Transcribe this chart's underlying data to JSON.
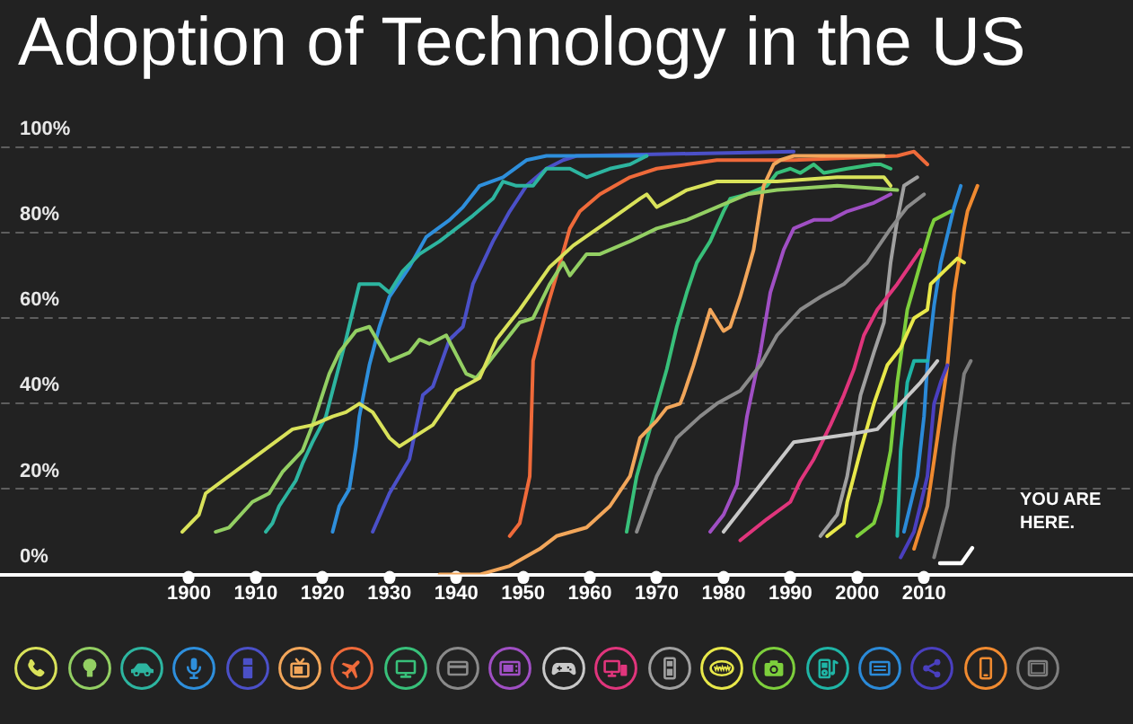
{
  "chart_data": {
    "type": "line",
    "title": "Adoption of Technology in the US",
    "xlim": [
      1872,
      2041
    ],
    "xticks": [
      1900,
      1910,
      1920,
      1930,
      1940,
      1950,
      1960,
      1970,
      1980,
      1990,
      2000,
      2010
    ],
    "ylim": [
      0,
      100
    ],
    "yticks": [
      {
        "value": 0,
        "label": "0%"
      },
      {
        "value": 20,
        "label": "20%"
      },
      {
        "value": 40,
        "label": "40%"
      },
      {
        "value": 60,
        "label": "60%"
      },
      {
        "value": 80,
        "label": "80%"
      },
      {
        "value": 100,
        "label": "100%"
      }
    ],
    "grid": "y",
    "annotations": [
      "YOU ARE HERE."
    ],
    "series": [
      {
        "color": "#d9e25a",
        "x": [
          1899,
          1901.5,
          1902.5,
          1915.5,
          1918.5,
          1921.5,
          1923.5,
          1925.5,
          1927.5,
          1930,
          1931.5,
          1936.5,
          1940,
          1943.5,
          1946,
          1949.5,
          1954,
          1957.5,
          1963,
          1967.5,
          1968.5,
          1970,
          1974.5,
          1979,
          1988,
          1997,
          2004,
          2005
        ],
        "values": [
          10,
          14,
          19,
          34,
          35,
          37,
          38,
          40,
          38,
          32,
          30,
          35,
          43,
          46,
          55,
          62,
          72,
          77,
          83,
          88,
          89,
          86,
          90,
          92,
          92,
          93,
          93,
          91
        ]
      },
      {
        "color": "#93cf63",
        "x": [
          1904,
          1906,
          1909.5,
          1912,
          1914,
          1917,
          1918.5,
          1921,
          1922.5,
          1925,
          1927,
          1930,
          1933,
          1934.5,
          1936,
          1938.5,
          1941.5,
          1943,
          1946,
          1949.5,
          1951.5,
          1954,
          1956,
          1957,
          1959.5,
          1961.5,
          1966,
          1970,
          1974.5,
          1979,
          1983.5,
          1988,
          1997,
          2006
        ],
        "values": [
          10,
          11,
          17,
          19,
          24,
          29,
          35,
          47,
          52,
          57,
          58,
          50,
          52,
          55,
          54,
          56,
          47,
          46,
          52,
          59,
          60,
          68,
          73,
          70,
          75,
          75,
          78,
          81,
          83,
          86,
          89,
          90,
          91,
          90
        ]
      },
      {
        "color": "#2db5a0",
        "x": [
          1911.5,
          1912.5,
          1913.5,
          1916,
          1917,
          1918.5,
          1920.5,
          1921.5,
          1923.5,
          1925.5,
          1928.5,
          1930,
          1932,
          1934.5,
          1937.5,
          1940,
          1942.5,
          1945.5,
          1947,
          1949,
          1951.5,
          1953.5,
          1957,
          1959.5,
          1963,
          1966,
          1968.5
        ],
        "values": [
          10,
          12,
          16,
          22,
          26,
          31,
          37,
          43,
          55,
          68,
          68,
          66,
          71,
          75,
          78,
          81,
          84,
          88,
          92,
          91,
          91,
          95,
          95,
          93,
          95,
          96,
          98
        ]
      },
      {
        "color": "#2e8fdc",
        "x": [
          1921.5,
          1922.5,
          1924,
          1925,
          1925.5,
          1927,
          1928.5,
          1930,
          1933,
          1935.5,
          1939,
          1941,
          1943.5,
          1947,
          1950.5,
          1953.5,
          1968.5
        ],
        "values": [
          10,
          16,
          20,
          30,
          37,
          49,
          58,
          65,
          72,
          79,
          83,
          86,
          91,
          93,
          97,
          98,
          98
        ]
      },
      {
        "color": "#4b50c8",
        "x": [
          1927.5,
          1930,
          1933,
          1935,
          1936.5,
          1939,
          1941,
          1942.5,
          1945.5,
          1948,
          1950.5,
          1953.5,
          1956,
          1958,
          1990.5
        ],
        "values": [
          10,
          19,
          27,
          42,
          44,
          55,
          58,
          68,
          78,
          85,
          91,
          95,
          97,
          98,
          99
        ]
      },
      {
        "color": "#f2a65a",
        "x": [
          1937.5,
          1943.5,
          1948,
          1952.5,
          1955,
          1959.5,
          1963,
          1966,
          1967.5,
          1970,
          1971.5,
          1973.5,
          1974,
          1975.5,
          1978,
          1980,
          1981,
          1982.5,
          1984.5,
          1986,
          1987.5,
          1988.5,
          1990.5,
          2004
        ],
        "values": [
          0,
          0,
          2,
          6,
          9,
          11,
          16,
          23,
          32,
          36,
          39,
          40,
          42,
          49,
          62,
          57,
          58,
          65,
          76,
          91,
          96,
          97,
          98,
          98
        ]
      },
      {
        "color": "#ef6a3a",
        "x": [
          1948,
          1949.5,
          1951,
          1951.5,
          1953.5,
          1955,
          1957,
          1958.5,
          1961.5,
          1966,
          1970,
          1974.5,
          1979,
          1990.5,
          2006,
          2008.5,
          2010.5
        ],
        "values": [
          9,
          12,
          23,
          50,
          62,
          70,
          81,
          85,
          89,
          93,
          95,
          96,
          97,
          97,
          98,
          99,
          96
        ]
      },
      {
        "color": "#38c07a",
        "x": [
          1965.5,
          1967,
          1969.5,
          1971.5,
          1973,
          1974.5,
          1976,
          1978,
          1980,
          1981,
          1983.5,
          1986.5,
          1988,
          1990,
          1991.5,
          1993.5,
          1995,
          1998.5,
          2002.5,
          2003.5,
          2005
        ],
        "values": [
          10,
          23,
          37,
          48,
          58,
          66,
          73,
          78,
          85,
          88,
          89,
          91,
          94,
          95,
          94,
          96,
          94,
          95,
          96,
          96,
          95
        ]
      },
      {
        "color": "#8a8a8a",
        "x": [
          1967,
          1970,
          1973,
          1976.5,
          1979,
          1982.5,
          1985.5,
          1988,
          1991.5,
          1994.5,
          1998,
          2001.5,
          2005,
          2007.5,
          2010
        ],
        "values": [
          10,
          23,
          32,
          37,
          40,
          43,
          49,
          56,
          62,
          65,
          68,
          73,
          81,
          86,
          89
        ]
      },
      {
        "color": "#a04fc4",
        "x": [
          1978,
          1980,
          1982,
          1983.5,
          1985.5,
          1987,
          1989,
          1990.5,
          1993.5,
          1996,
          1998.5,
          2002.5,
          2005
        ],
        "values": [
          10,
          14,
          21,
          37,
          52,
          66,
          76,
          81,
          83,
          83,
          85,
          87,
          89
        ]
      },
      {
        "color": "#c8c8c8",
        "x": [
          1980,
          1983.5,
          1987,
          1990.5,
          1995,
          1999.5,
          2003,
          2006.5,
          2009.5,
          2012
        ],
        "values": [
          10,
          17,
          24,
          31,
          32,
          33,
          34,
          40,
          45,
          50
        ]
      },
      {
        "color": "#e0357c",
        "x": [
          1982.5,
          1986.5,
          1990,
          1991.5,
          1993.5,
          1996,
          1998,
          1999.5,
          2001,
          2003,
          2006,
          2009.5
        ],
        "values": [
          8,
          13,
          17,
          22,
          27,
          35,
          42,
          48,
          56,
          62,
          68,
          76
        ]
      },
      {
        "color": "#a0a0a0",
        "x": [
          1994.5,
          1997,
          1998.5,
          2000.5,
          2002.5,
          2004,
          2005,
          2006,
          2007,
          2009
        ],
        "values": [
          9,
          14,
          23,
          42,
          52,
          59,
          73,
          83,
          91,
          93
        ]
      },
      {
        "color": "#e8e84a",
        "x": [
          1995.5,
          1998,
          1998.5,
          2000.5,
          2002.5,
          2004.5,
          2006.5,
          2008.5,
          2010.5,
          2011,
          2013,
          2015,
          2016
        ],
        "values": [
          9,
          12,
          17,
          29,
          40,
          49,
          53,
          60,
          62,
          68,
          71,
          74,
          73
        ]
      },
      {
        "color": "#7dcf3c",
        "x": [
          2000,
          2002.5,
          2003.5,
          2005,
          2006,
          2007.5,
          2009.5,
          2011,
          2011.5,
          2014
        ],
        "values": [
          9,
          12,
          17,
          29,
          45,
          62,
          73,
          81,
          83,
          85
        ]
      },
      {
        "color": "#1fb5a6",
        "x": [
          2006,
          2006.5,
          2007.5,
          2008.5,
          2010.5
        ],
        "values": [
          9,
          29,
          45,
          50,
          50
        ]
      },
      {
        "color": "#2b8ad8",
        "x": [
          2007,
          2009,
          2010,
          2010.5,
          2011.5,
          2012.5,
          2014.5,
          2015.5
        ],
        "values": [
          10,
          23,
          37,
          49,
          63,
          73,
          86,
          91
        ]
      },
      {
        "color": "#4a3fbf",
        "x": [
          2006.5,
          2008.5,
          2010.5,
          2011.5,
          2012.5,
          2013.5
        ],
        "values": [
          4,
          10,
          23,
          40,
          45,
          49
        ]
      },
      {
        "color": "#f08a30",
        "x": [
          2008.5,
          2010.5,
          2012,
          2013.5,
          2014.5,
          2016,
          2016.5,
          2018
        ],
        "values": [
          6,
          16,
          32,
          49,
          66,
          81,
          85,
          91
        ]
      },
      {
        "color": "#7e7e7e",
        "x": [
          2011.5,
          2013.5,
          2014.5,
          2016,
          2017
        ],
        "values": [
          4,
          16,
          30,
          47,
          50
        ]
      }
    ]
  }
}
